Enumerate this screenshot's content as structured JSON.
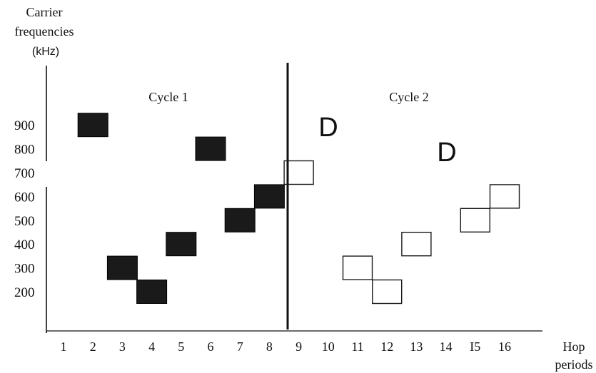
{
  "y_axis_title": [
    "Carrier",
    "frequencies",
    "(kHz)"
  ],
  "x_axis_title": [
    "Hop",
    "periods"
  ],
  "cycle_labels": [
    "Cycle 1",
    "Cycle 2"
  ],
  "d_markers": [
    "D",
    "D"
  ],
  "chart_data": {
    "type": "scatter",
    "title": "",
    "xlabel": "Hop periods",
    "ylabel": "Carrier frequencies (kHz)",
    "x_ticks": [
      "1",
      "2",
      "3",
      "4",
      "5",
      "6",
      "7",
      "8",
      "9",
      "10",
      "11",
      "12",
      "13",
      "14",
      "I5",
      "16"
    ],
    "y_ticks": [
      "200",
      "300",
      "400",
      "500",
      "600",
      "700",
      "800",
      "900"
    ],
    "series": [
      {
        "name": "Cycle 1",
        "style": "filled",
        "color": "#1a1a1a",
        "points": [
          {
            "x": 2,
            "y": 900
          },
          {
            "x": 3,
            "y": 300
          },
          {
            "x": 4,
            "y": 200
          },
          {
            "x": 5,
            "y": 400
          },
          {
            "x": 6,
            "y": 800
          },
          {
            "x": 7,
            "y": 500
          },
          {
            "x": 8,
            "y": 600
          }
        ]
      },
      {
        "name": "Cycle 2",
        "style": "outline",
        "color": "#1a1a1a",
        "points": [
          {
            "x": 9,
            "y": 700
          },
          {
            "x": 11,
            "y": 300
          },
          {
            "x": 12,
            "y": 200
          },
          {
            "x": 13,
            "y": 400
          },
          {
            "x": 15,
            "y": 500
          },
          {
            "x": 16,
            "y": 600
          }
        ]
      }
    ]
  }
}
